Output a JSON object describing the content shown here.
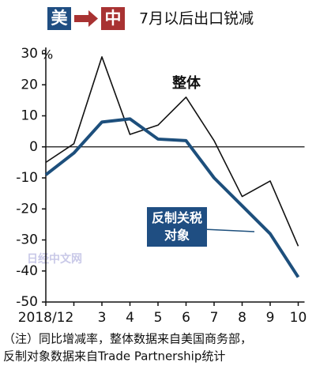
{
  "chart_data": {
    "type": "line",
    "badge_from": "美",
    "badge_to": "中",
    "title": "7月以后出口锐减",
    "y_unit": "%",
    "categories": [
      "2018/12",
      null,
      "3",
      "4",
      "5",
      "6",
      "7",
      "8",
      "9",
      "10"
    ],
    "series": [
      {
        "name": "整体",
        "color": "#111111",
        "values": [
          -5,
          1,
          29,
          4,
          7,
          16,
          2,
          -16,
          -11,
          -32
        ]
      },
      {
        "name": "反制关税对象",
        "color": "#1d4f7c",
        "values": [
          -9,
          -2,
          8,
          9,
          2.5,
          2,
          -10,
          -19,
          -28,
          -42
        ]
      }
    ],
    "ylim": [
      -50,
      30
    ],
    "yticks": [
      30,
      20,
      10,
      0,
      -10,
      -20,
      -30,
      -40,
      -50
    ],
    "grid": false,
    "watermark": "日经中文网",
    "note": [
      "（注）同比增减率，整体数据来自美国商务部，",
      "反制对象数据来自Trade Partnership统计"
    ]
  }
}
